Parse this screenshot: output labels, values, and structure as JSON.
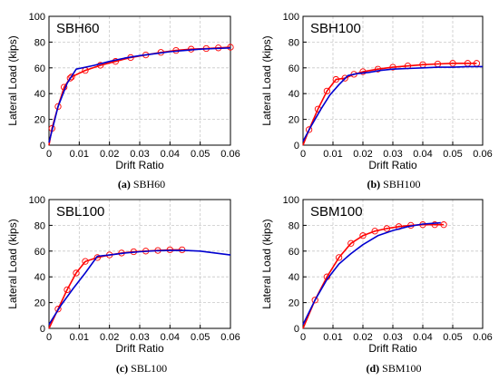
{
  "chart_data": [
    {
      "type": "line",
      "title": "SBH60",
      "caption_letter": "(a)",
      "caption_text": "SBH60",
      "xlabel": "Drift Ratio",
      "ylabel": "Lateral Load (kips)",
      "xlim": [
        0,
        0.06
      ],
      "ylim": [
        0,
        100
      ],
      "xticks": [
        "0",
        "0.01",
        "0.02",
        "0.03",
        "0.04",
        "0.05",
        "0.06"
      ],
      "yticks": [
        "0",
        "20",
        "40",
        "60",
        "80",
        "100"
      ],
      "grid": true,
      "colors": {
        "red": "#ff0000",
        "blue": "#0000d0"
      },
      "series": [
        {
          "color": "#ff0000",
          "markers": true,
          "x": [
            0,
            0.001,
            0.003,
            0.005,
            0.007,
            0.0075,
            0.012,
            0.017,
            0.022,
            0.027,
            0.032,
            0.037,
            0.042,
            0.047,
            0.052,
            0.056,
            0.06
          ],
          "y": [
            0,
            13,
            30,
            45,
            52,
            53,
            58,
            62,
            65,
            68,
            70,
            72,
            73.5,
            74.5,
            75,
            75.5,
            76
          ]
        },
        {
          "color": "#0000d0",
          "markers": false,
          "x": [
            0,
            0.003,
            0.006,
            0.009,
            0.012,
            0.015,
            0.02,
            0.025,
            0.03,
            0.035,
            0.04,
            0.045,
            0.05,
            0.055,
            0.06
          ],
          "y": [
            2,
            30,
            48,
            59,
            60.5,
            62,
            65,
            67.5,
            69.5,
            71,
            72.5,
            73.5,
            74.5,
            75,
            75.5
          ]
        }
      ]
    },
    {
      "type": "line",
      "title": "SBH100",
      "caption_letter": "(b)",
      "caption_text": "SBH100",
      "xlabel": "Drift Ratio",
      "ylabel": "Lateral Load (kips)",
      "xlim": [
        0,
        0.06
      ],
      "ylim": [
        0,
        100
      ],
      "xticks": [
        "0",
        "0.01",
        "0.02",
        "0.03",
        "0.04",
        "0.05",
        "0.06"
      ],
      "yticks": [
        "0",
        "20",
        "40",
        "60",
        "80",
        "100"
      ],
      "grid": true,
      "colors": {
        "red": "#ff0000",
        "blue": "#0000d0"
      },
      "series": [
        {
          "color": "#ff0000",
          "markers": true,
          "x": [
            0,
            0.002,
            0.005,
            0.008,
            0.011,
            0.014,
            0.017,
            0.02,
            0.025,
            0.03,
            0.035,
            0.04,
            0.045,
            0.05,
            0.055,
            0.058
          ],
          "y": [
            0,
            12,
            28,
            42,
            51,
            52,
            55,
            57,
            59,
            60.5,
            61.5,
            62.5,
            63,
            63.5,
            63.5,
            63.5
          ]
        },
        {
          "color": "#0000d0",
          "markers": false,
          "x": [
            0,
            0.003,
            0.006,
            0.009,
            0.012,
            0.015,
            0.018,
            0.022,
            0.026,
            0.03,
            0.035,
            0.04,
            0.045,
            0.05,
            0.055,
            0.06
          ],
          "y": [
            3,
            16,
            28,
            39,
            47,
            54,
            55.5,
            56.5,
            58,
            59,
            59.5,
            60,
            60.5,
            60.5,
            61,
            61
          ]
        }
      ]
    },
    {
      "type": "line",
      "title": "SBL100",
      "caption_letter": "(c)",
      "caption_text": "SBL100",
      "xlabel": "Drift Ratio",
      "ylabel": "Lateral Load (kips)",
      "xlim": [
        0,
        0.06
      ],
      "ylim": [
        0,
        100
      ],
      "xticks": [
        "0",
        "0.01",
        "0.02",
        "0.03",
        "0.04",
        "0.05",
        "0.06"
      ],
      "yticks": [
        "0",
        "20",
        "40",
        "60",
        "80",
        "100"
      ],
      "grid": true,
      "colors": {
        "red": "#ff0000",
        "blue": "#0000d0"
      },
      "series": [
        {
          "color": "#ff0000",
          "markers": true,
          "x": [
            0,
            0.003,
            0.006,
            0.009,
            0.012,
            0.016,
            0.02,
            0.024,
            0.028,
            0.032,
            0.036,
            0.04,
            0.044
          ],
          "y": [
            0,
            15,
            30,
            43,
            52,
            55,
            57,
            58.5,
            59.5,
            60,
            60.5,
            61,
            61
          ]
        },
        {
          "color": "#0000d0",
          "markers": false,
          "x": [
            0,
            0.004,
            0.008,
            0.012,
            0.016,
            0.02,
            0.025,
            0.03,
            0.035,
            0.04,
            0.045,
            0.05,
            0.055,
            0.06
          ],
          "y": [
            3,
            18,
            31,
            43,
            56,
            57,
            58.5,
            59.5,
            60.2,
            60.5,
            60.5,
            60,
            58.5,
            57
          ]
        }
      ]
    },
    {
      "type": "line",
      "title": "SBM100",
      "caption_letter": "(d)",
      "caption_text": "SBM100",
      "xlabel": "Drift Ratio",
      "ylabel": "Lateral Load (kips)",
      "xlim": [
        0,
        0.06
      ],
      "ylim": [
        0,
        100
      ],
      "xticks": [
        "0",
        "0.01",
        "0.02",
        "0.03",
        "0.04",
        "0.05",
        "0.06"
      ],
      "yticks": [
        "0",
        "20",
        "40",
        "60",
        "80",
        "100"
      ],
      "grid": true,
      "colors": {
        "red": "#ff0000",
        "blue": "#0000d0"
      },
      "series": [
        {
          "color": "#ff0000",
          "markers": true,
          "x": [
            0,
            0.004,
            0.008,
            0.012,
            0.016,
            0.02,
            0.024,
            0.028,
            0.032,
            0.036,
            0.04,
            0.044,
            0.047
          ],
          "y": [
            0,
            22,
            40,
            55,
            66,
            72,
            75.5,
            77.5,
            79,
            80,
            80.5,
            80.5,
            80.5
          ]
        },
        {
          "color": "#0000d0",
          "markers": false,
          "x": [
            0,
            0.004,
            0.008,
            0.012,
            0.016,
            0.02,
            0.025,
            0.03,
            0.035,
            0.04,
            0.046
          ],
          "y": [
            3,
            22,
            38,
            50,
            58,
            65,
            72,
            76,
            79,
            81,
            82
          ]
        }
      ]
    }
  ]
}
